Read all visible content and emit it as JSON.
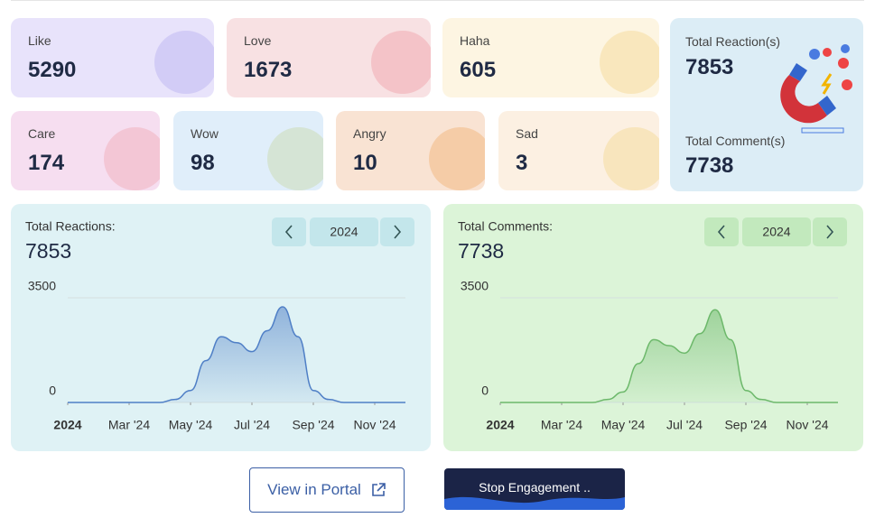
{
  "reaction_cards": [
    {
      "label": "Like",
      "value": 5290
    },
    {
      "label": "Love",
      "value": 1673
    },
    {
      "label": "Haha",
      "value": 605
    },
    {
      "label": "Care",
      "value": 174
    },
    {
      "label": "Wow",
      "value": 98
    },
    {
      "label": "Angry",
      "value": 10
    },
    {
      "label": "Sad",
      "value": 3
    }
  ],
  "summary": {
    "reactions_label": "Total Reaction(s)",
    "reactions_value": 7853,
    "comments_label": "Total Comment(s)",
    "comments_value": 7738
  },
  "charts": [
    {
      "type": "area",
      "title": "Total Reactions:",
      "total": 7853,
      "year": 2024,
      "color": "#4f7fc6",
      "x": [
        0,
        1,
        2,
        3,
        3.5,
        4,
        4.5,
        5,
        5.5,
        6,
        6.5,
        7,
        7.5,
        8,
        8.5,
        9,
        10,
        11
      ],
      "values": [
        0,
        0,
        0,
        0,
        100,
        400,
        1400,
        2200,
        2000,
        1700,
        2400,
        3200,
        2200,
        400,
        100,
        0,
        0,
        0
      ],
      "xlim": [
        0,
        11
      ],
      "ylim": [
        0,
        3700
      ],
      "xticks": [
        {
          "value": 0,
          "label": "2024"
        },
        {
          "value": 2,
          "label": "Mar '24"
        },
        {
          "value": 4,
          "label": "May '24"
        },
        {
          "value": 6,
          "label": "Jul '24"
        },
        {
          "value": 8,
          "label": "Sep '24"
        },
        {
          "value": 10,
          "label": "Nov '24"
        }
      ],
      "yticks": [
        0,
        3500
      ]
    },
    {
      "type": "area",
      "title": "Total Comments:",
      "total": 7738,
      "year": 2024,
      "color": "#6cb86a",
      "x": [
        0,
        1,
        2,
        3,
        3.5,
        4,
        4.5,
        5,
        5.5,
        6,
        6.5,
        7,
        7.5,
        8,
        8.5,
        9,
        10,
        11
      ],
      "values": [
        0,
        0,
        0,
        0,
        100,
        350,
        1300,
        2100,
        1900,
        1650,
        2300,
        3100,
        2100,
        400,
        100,
        0,
        0,
        0
      ],
      "xlim": [
        0,
        11
      ],
      "ylim": [
        0,
        3700
      ],
      "xticks": [
        {
          "value": 0,
          "label": "2024"
        },
        {
          "value": 2,
          "label": "Mar '24"
        },
        {
          "value": 4,
          "label": "May '24"
        },
        {
          "value": 6,
          "label": "Jul '24"
        },
        {
          "value": 8,
          "label": "Sep '24"
        },
        {
          "value": 10,
          "label": "Nov '24"
        }
      ],
      "yticks": [
        0,
        3500
      ]
    }
  ],
  "buttons": {
    "portal": "View in Portal",
    "stop": "Stop Engagement .."
  }
}
